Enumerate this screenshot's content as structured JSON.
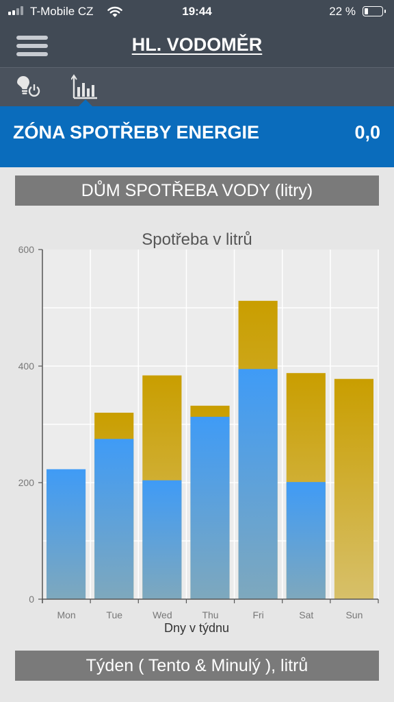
{
  "status_bar": {
    "carrier": "T-Mobile CZ",
    "time": "19:44",
    "battery_percent": "22 %",
    "battery_level": 0.22,
    "icons": [
      "cellular-signal-icon",
      "wifi-icon",
      "battery-icon"
    ]
  },
  "header": {
    "title": "HL. VODOMĚR",
    "menu_icon": "hamburger-menu-icon"
  },
  "tabs": [
    {
      "icon": "lightbulb-power-icon",
      "selected": false
    },
    {
      "icon": "bar-chart-icon",
      "selected": true
    }
  ],
  "zone": {
    "label": "ZÓNA SPOTŘEBY ENERGIE",
    "value": "0,0"
  },
  "top_section_label": "DŮM SPOTŘEBA VODY (litry)",
  "bottom_section_label": "Týden ( Tento & Minulý ), litrů",
  "colors": {
    "status_bg": "#414a55",
    "accent_blue": "#0a6cbc",
    "section_gray": "#7a7a7a",
    "bar_current_top": "#3f9bf6",
    "bar_current_bottom": "#7ea8bd",
    "bar_previous_top": "#c99e00",
    "bar_previous_bottom": "#d7c06a"
  },
  "chart_data": {
    "type": "bar",
    "title": "Spotřeba v litrů",
    "xlabel": "Dny v týdnu",
    "ylabel": "",
    "ylim": [
      0,
      600
    ],
    "yticks": [
      0,
      200,
      400,
      600
    ],
    "categories": [
      "Mon",
      "Tue",
      "Wed",
      "Thu",
      "Fri",
      "Sat",
      "Sun"
    ],
    "series": [
      {
        "values": [
          223,
          275,
          204,
          313,
          395,
          201,
          0
        ]
      },
      {
        "values": [
          0,
          320,
          384,
          332,
          512,
          388,
          378
        ]
      }
    ],
    "grid": true
  }
}
